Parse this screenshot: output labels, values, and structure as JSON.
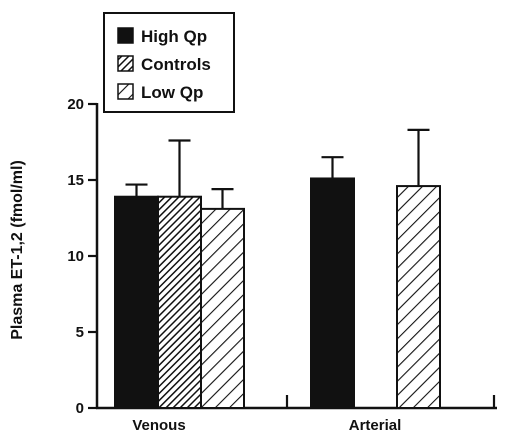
{
  "chart_data": {
    "type": "bar",
    "title": "",
    "xlabel": "",
    "ylabel": "Plasma ET-1,2 (fmol/ml)",
    "ylim": [
      0,
      20
    ],
    "yticks": [
      "0",
      "5",
      "10",
      "15",
      "20"
    ],
    "categories": [
      "Venous",
      "Arterial"
    ],
    "series": [
      {
        "name": "High Qp",
        "pattern": "solid",
        "values": [
          13.9,
          15.1
        ],
        "errors": [
          0.8,
          1.4
        ]
      },
      {
        "name": "Controls",
        "pattern": "dense-hatch",
        "values": [
          13.9,
          null
        ],
        "errors": [
          3.7,
          null
        ]
      },
      {
        "name": "Low Qp",
        "pattern": "hatch",
        "values": [
          13.1,
          14.6
        ],
        "errors": [
          1.3,
          3.7
        ]
      }
    ],
    "legend_position": "top-left",
    "grid": false,
    "colors": {
      "ink": "#111111",
      "paper": "#ffffff"
    }
  }
}
